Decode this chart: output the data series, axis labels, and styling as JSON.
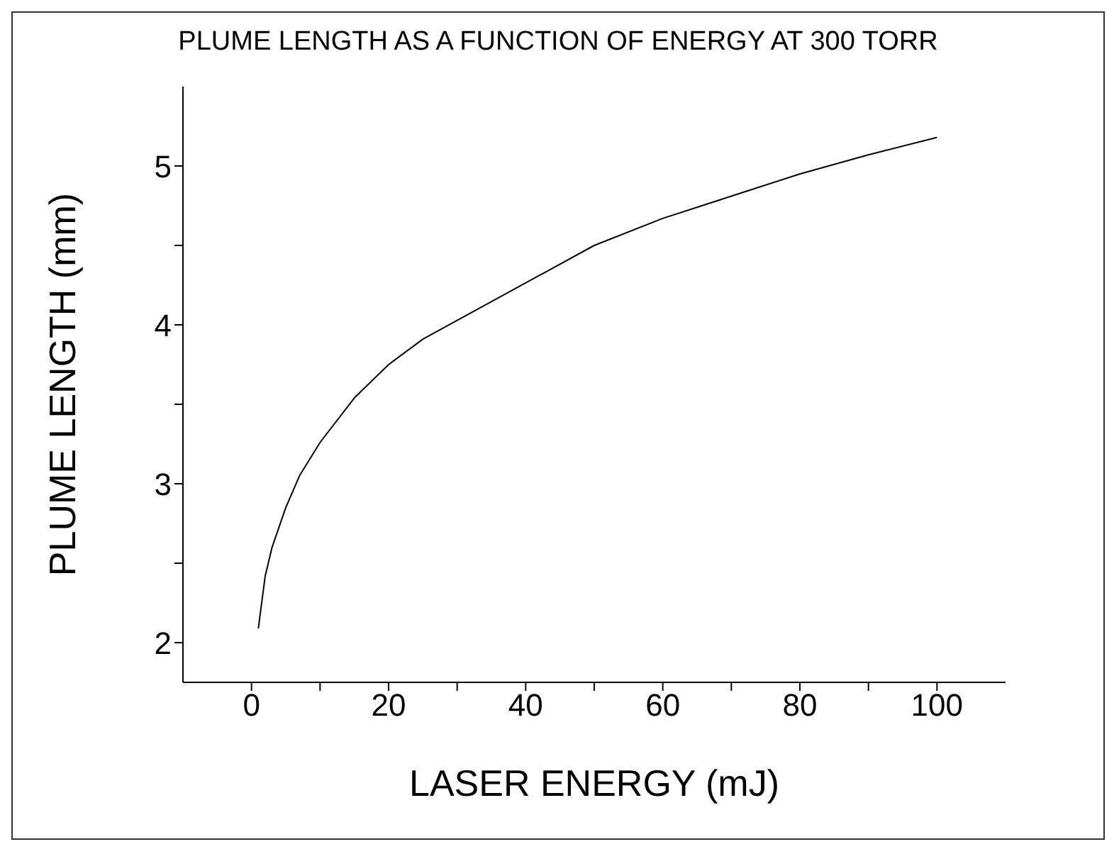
{
  "chart_data": {
    "type": "line",
    "title": "PLUME LENGTH AS A FUNCTION OF ENERGY AT 300 TORR",
    "xlabel": "LASER ENERGY (mJ)",
    "ylabel": "PLUME LENGTH (mm)",
    "x": [
      1,
      2,
      3,
      5,
      7,
      10,
      15,
      20,
      25,
      50,
      60,
      70,
      80,
      90,
      100
    ],
    "series": [
      {
        "color": "#000000",
        "values": [
          2.09,
          2.42,
          2.6,
          2.85,
          3.05,
          3.26,
          3.54,
          3.75,
          3.91,
          4.5,
          4.67,
          4.81,
          4.95,
          5.07,
          5.18
        ]
      }
    ],
    "xlim": [
      -10,
      110
    ],
    "xticks": [
      0,
      {
        "value": 10,
        "label": null
      },
      20,
      {
        "value": 30,
        "label": null
      },
      40,
      {
        "value": 50,
        "label": null
      },
      60,
      {
        "value": 70,
        "label": null
      },
      80,
      {
        "value": 90,
        "label": null
      },
      100
    ],
    "ylim": [
      1.75,
      5.5
    ],
    "yticks": [
      2,
      {
        "value": 2.5,
        "label": null
      },
      3,
      {
        "value": 3.5,
        "label": null
      },
      4,
      {
        "value": 4.5,
        "label": null
      },
      5
    ],
    "grid": false,
    "legend": false,
    "marker": "none",
    "line_style": "solid"
  }
}
